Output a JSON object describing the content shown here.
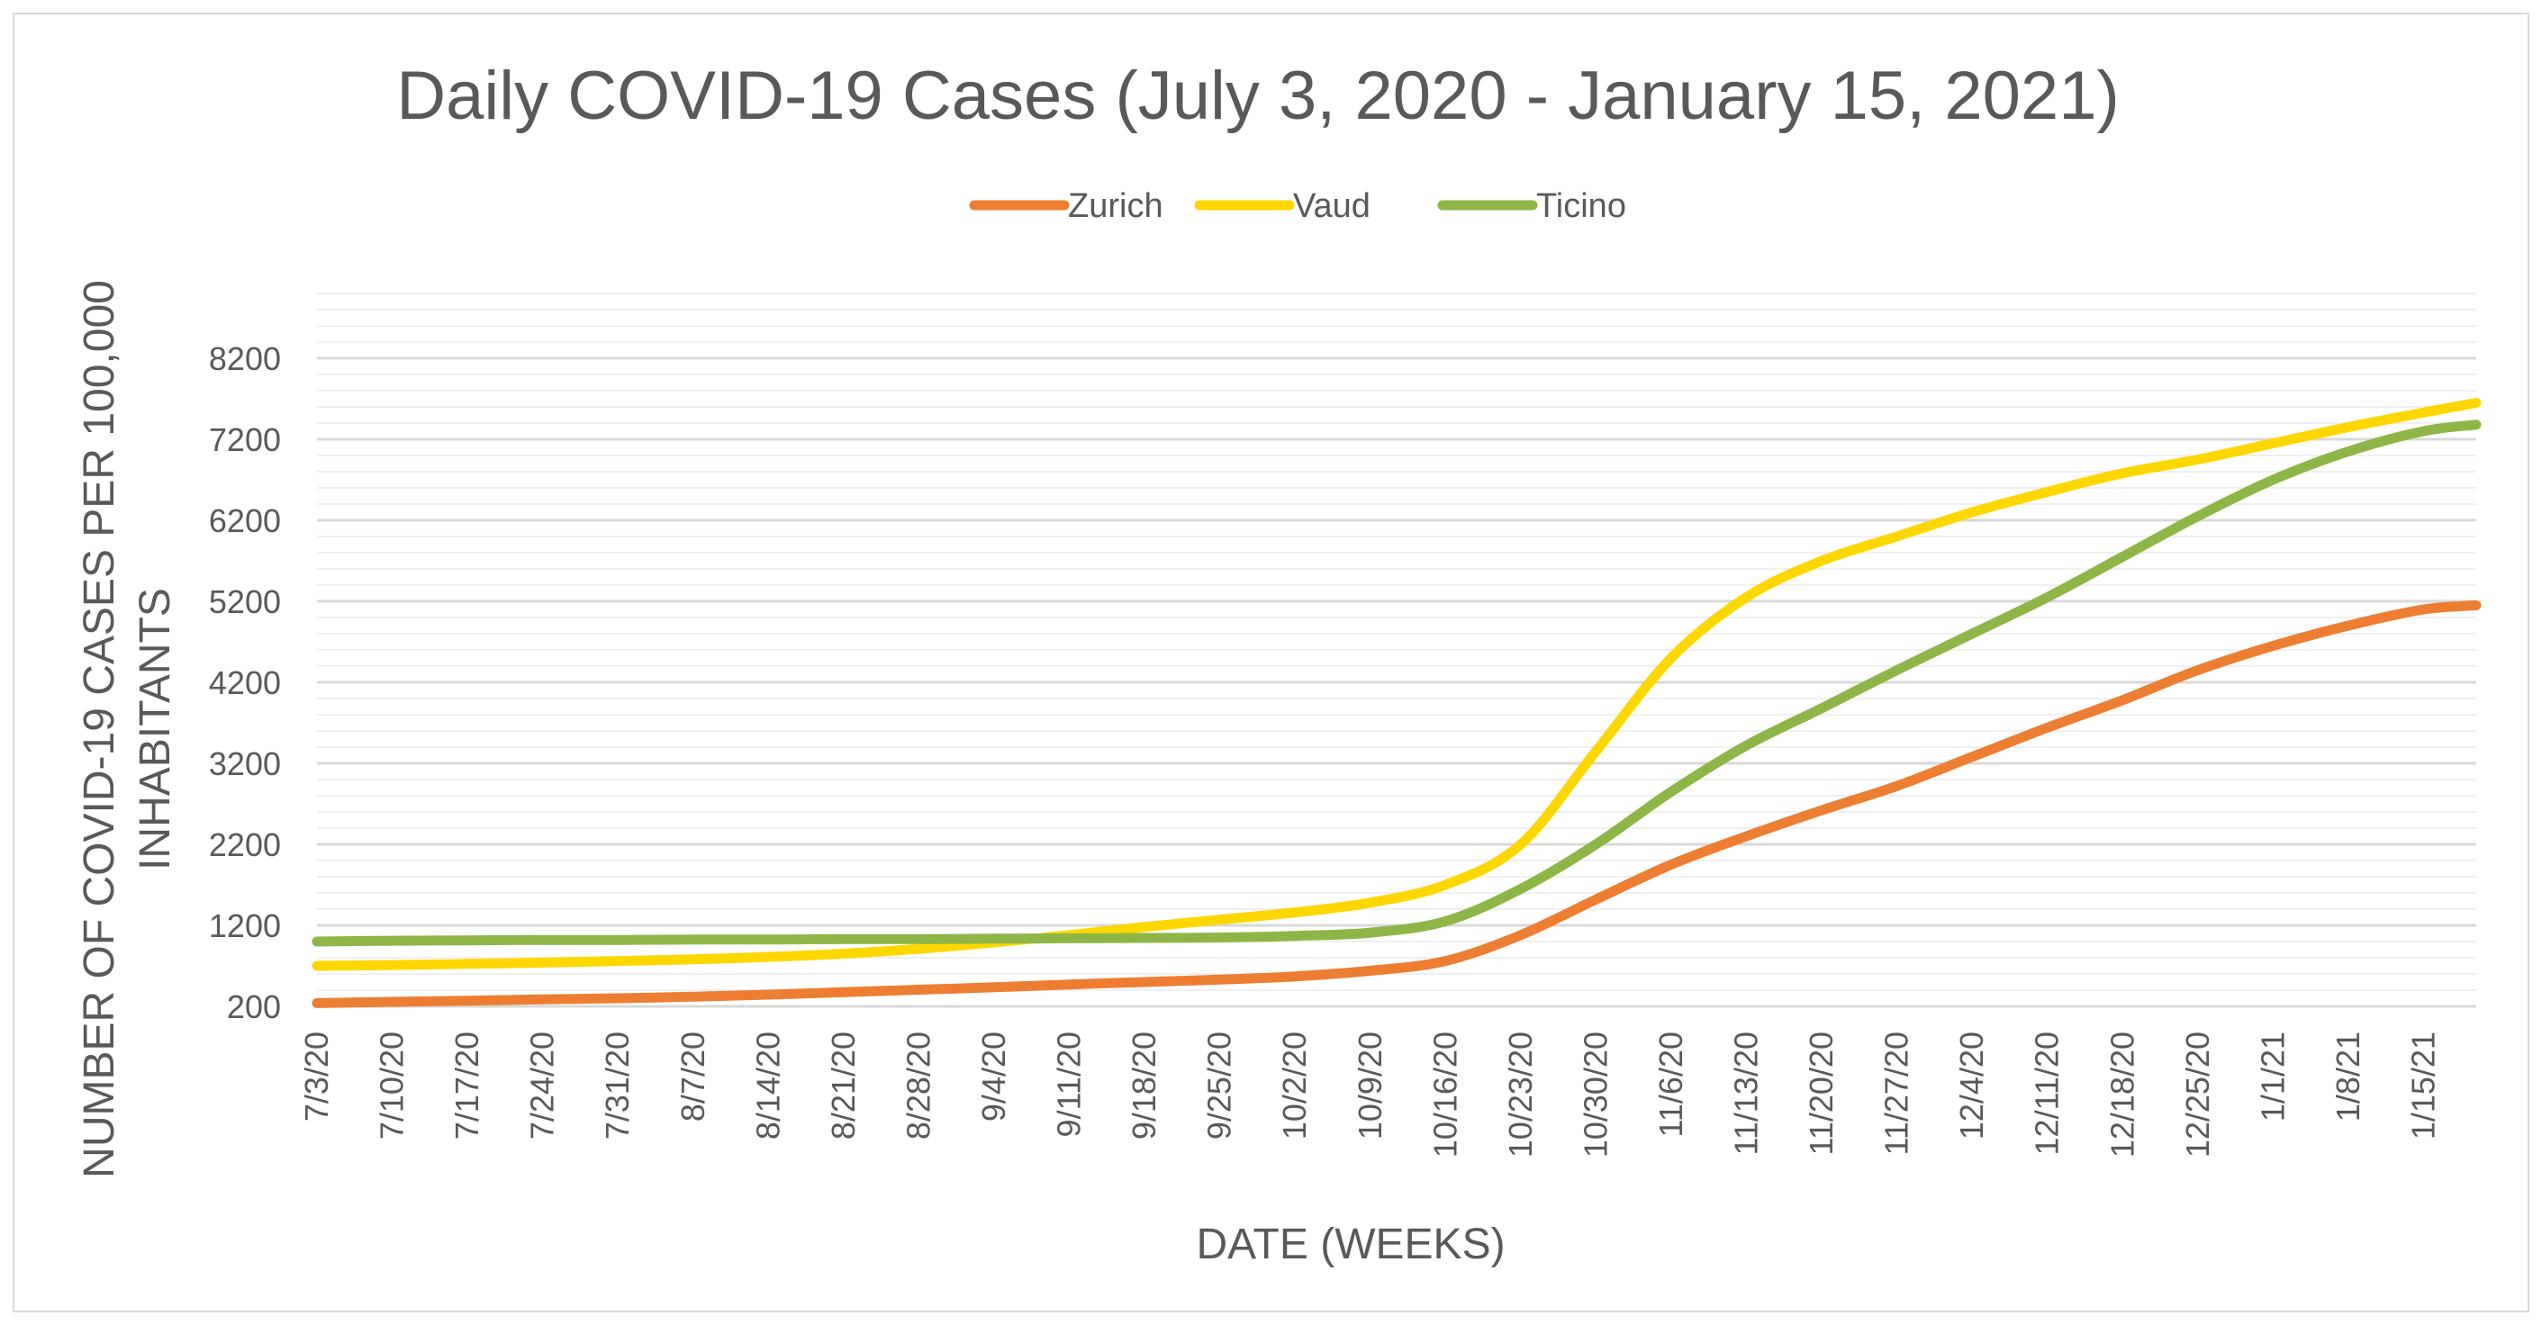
{
  "chart_data": {
    "type": "line",
    "title": "Daily COVID-19 Cases (July 3, 2020 - January 15, 2021)",
    "xlabel": "DATE (WEEKS)",
    "ylabel_line1": "NUMBER OF COVID-19 CASES PER 100,000",
    "ylabel_line2": "INHABITANTS",
    "ylim": [
      200,
      9000
    ],
    "yticks": [
      "200",
      "1200",
      "2200",
      "3200",
      "4200",
      "5200",
      "6200",
      "7200",
      "8200"
    ],
    "ytick_values": [
      200,
      1200,
      2200,
      3200,
      4200,
      5200,
      6200,
      7200,
      8200
    ],
    "grid": true,
    "legend_position": "top-center",
    "categories": [
      "7/3/20",
      "7/10/20",
      "7/17/20",
      "7/24/20",
      "7/31/20",
      "8/7/20",
      "8/14/20",
      "8/21/20",
      "8/28/20",
      "9/4/20",
      "9/11/20",
      "9/18/20",
      "9/25/20",
      "10/2/20",
      "10/9/20",
      "10/16/20",
      "10/23/20",
      "10/30/20",
      "11/6/20",
      "11/13/20",
      "11/20/20",
      "11/27/20",
      "12/4/20",
      "12/11/20",
      "12/18/20",
      "12/25/20",
      "1/1/21",
      "1/8/21",
      "1/15/21"
    ],
    "x_end": 28.7,
    "series": [
      {
        "name": "Zurich",
        "color": "#ED7D31",
        "x": [
          0,
          1,
          2,
          3,
          4,
          5,
          6,
          7,
          8,
          9,
          10,
          11,
          12,
          13,
          14,
          15,
          16,
          17,
          18,
          19,
          20,
          21,
          22,
          23,
          24,
          25,
          26,
          27,
          28,
          28.7
        ],
        "values": [
          240,
          255,
          270,
          285,
          300,
          320,
          345,
          375,
          405,
          435,
          470,
          500,
          530,
          570,
          640,
          760,
          1080,
          1520,
          1950,
          2300,
          2620,
          2920,
          3280,
          3640,
          3980,
          4350,
          4650,
          4900,
          5100,
          5150
        ]
      },
      {
        "name": "Vaud",
        "color": "#FFD700",
        "x": [
          0,
          1,
          2,
          3,
          4,
          5,
          6,
          7,
          8,
          9,
          10,
          11,
          12,
          13,
          14,
          15,
          16,
          17,
          18,
          19,
          20,
          21,
          22,
          23,
          24,
          25,
          26,
          27,
          28,
          28.7
        ],
        "values": [
          700,
          710,
          725,
          740,
          760,
          780,
          810,
          850,
          910,
          990,
          1080,
          1180,
          1270,
          1360,
          1480,
          1700,
          2200,
          3350,
          4500,
          5250,
          5700,
          6000,
          6300,
          6550,
          6780,
          6950,
          7150,
          7350,
          7530,
          7650
        ]
      },
      {
        "name": "Ticino",
        "color": "#8DB646",
        "x": [
          0,
          1,
          2,
          3,
          4,
          5,
          6,
          7,
          8,
          9,
          10,
          11,
          12,
          13,
          14,
          15,
          16,
          17,
          18,
          19,
          20,
          21,
          22,
          23,
          24,
          25,
          26,
          27,
          28,
          28.7
        ],
        "values": [
          1000,
          1010,
          1015,
          1020,
          1020,
          1025,
          1025,
          1030,
          1030,
          1035,
          1040,
          1045,
          1050,
          1070,
          1110,
          1250,
          1650,
          2200,
          2850,
          3420,
          3880,
          4350,
          4800,
          5250,
          5750,
          6250,
          6700,
          7050,
          7300,
          7380
        ]
      }
    ]
  }
}
